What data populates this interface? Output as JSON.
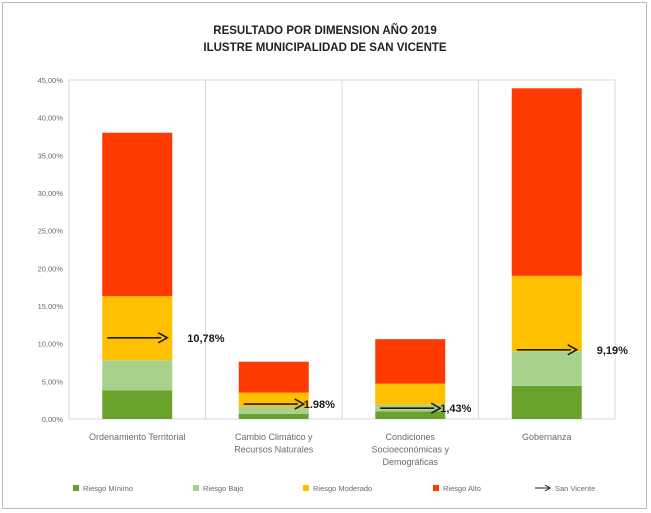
{
  "chart_data": {
    "type": "bar",
    "stacked": true,
    "title": "RESULTADO POR DIMENSION AÑO 2019",
    "subtitle": "ILUSTRE MUNICIPALIDAD DE SAN VICENTE",
    "xlabel": "",
    "ylabel": "",
    "ylim": [
      0,
      45
    ],
    "y_tick_labels": [
      "0,00%",
      "5,00%",
      "10,00%",
      "15,00%",
      "20,00%",
      "25,00%",
      "30,00%",
      "35,00%",
      "40,00%",
      "45,00%"
    ],
    "grid": "vertical separators between categories",
    "legend_position": "bottom",
    "categories": [
      [
        "Ordenamiento Territorial"
      ],
      [
        "Cambio Climático y",
        "Recursos Naturales"
      ],
      [
        "Condiciones",
        "Socioeconómicas y",
        "Demográficas"
      ],
      [
        "Gobernanza"
      ]
    ],
    "series": [
      {
        "name": "Riesgo Mínimo",
        "color": "#6aa32c",
        "values": [
          3.8,
          0.7,
          1.0,
          4.4
        ]
      },
      {
        "name": "Riesgo Bajo",
        "color": "#a9d18e",
        "values": [
          4.0,
          0.9,
          0.9,
          4.6
        ]
      },
      {
        "name": "Riesgo Moderado",
        "color": "#ffc000",
        "values": [
          8.5,
          1.9,
          2.8,
          10.0
        ]
      },
      {
        "name": "Riesgo Alto",
        "color": "#ff3a00",
        "values": [
          21.7,
          4.1,
          5.9,
          24.9
        ]
      }
    ],
    "marker_series": {
      "name": "San Vicente",
      "color": "#1b1b1b",
      "values": [
        10.78,
        1.98,
        1.43,
        9.19
      ],
      "labels": [
        "10,78%",
        "1.98%",
        "1,43%",
        "9,19%"
      ]
    }
  }
}
